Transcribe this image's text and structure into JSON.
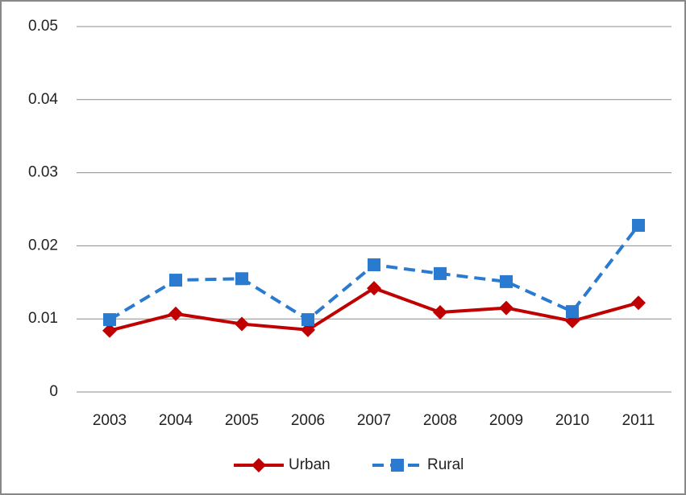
{
  "chart_data": {
    "type": "line",
    "categories": [
      "2003",
      "2004",
      "2005",
      "2006",
      "2007",
      "2008",
      "2009",
      "2010",
      "2011"
    ],
    "series": [
      {
        "name": "Urban",
        "color": "#c00000",
        "marker": "diamond",
        "dash": false,
        "values": [
          0.0084,
          0.0107,
          0.0093,
          0.0085,
          0.0142,
          0.0109,
          0.0115,
          0.0097,
          0.0122
        ]
      },
      {
        "name": "Rural",
        "color": "#2a7bd0",
        "marker": "square",
        "dash": true,
        "values": [
          0.0099,
          0.0153,
          0.0155,
          0.0099,
          0.0174,
          0.0162,
          0.0151,
          0.011,
          0.0228
        ]
      }
    ],
    "ylim": [
      0,
      0.05
    ],
    "yticks": [
      0,
      0.01,
      0.02,
      0.03,
      0.04,
      0.05
    ],
    "grid": true,
    "legend": "bottom"
  }
}
